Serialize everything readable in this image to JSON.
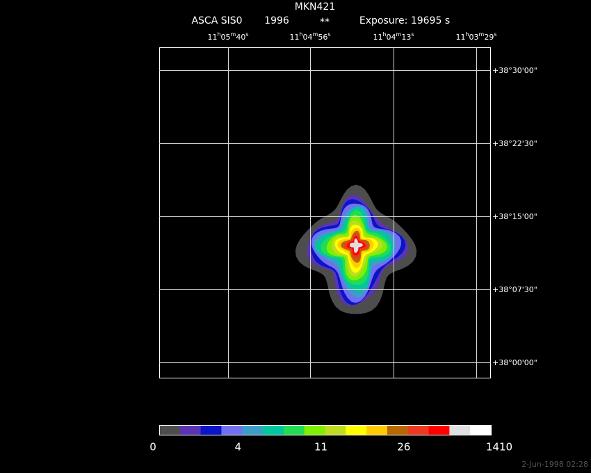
{
  "header": {
    "title": "MKN421",
    "instrument": "ASCA SIS0",
    "year": "1996",
    "marker": "**",
    "exposure": "Exposure: 19695 s"
  },
  "ra_labels": [
    [
      "11",
      "h",
      "05",
      "m",
      "40",
      "s"
    ],
    [
      "11",
      "h",
      "04",
      "m",
      "56",
      "s"
    ],
    [
      "11",
      "h",
      "04",
      "m",
      "13",
      "s"
    ],
    [
      "11",
      "h",
      "03",
      "m",
      "29",
      "s"
    ]
  ],
  "dec_labels": [
    "+38°30'00\"",
    "+38°22'30\"",
    "+38°15'00\"",
    "+38°07'30\"",
    "+38°00'00\""
  ],
  "colorbar": {
    "colors": [
      "#4d4d4d",
      "#5a34b4",
      "#0a14c8",
      "#7070f0",
      "#3c9ec8",
      "#00c89c",
      "#22dc55",
      "#80ee00",
      "#c0dc20",
      "#ffff00",
      "#ffcc00",
      "#b86800",
      "#ee3820",
      "#ff0000",
      "#e0e0e0",
      "#ffffff"
    ],
    "labels": [
      "0",
      "4",
      "11",
      "26",
      "1410"
    ]
  },
  "footer": {
    "timestamp": "2-Jun-1998 02:28"
  }
}
